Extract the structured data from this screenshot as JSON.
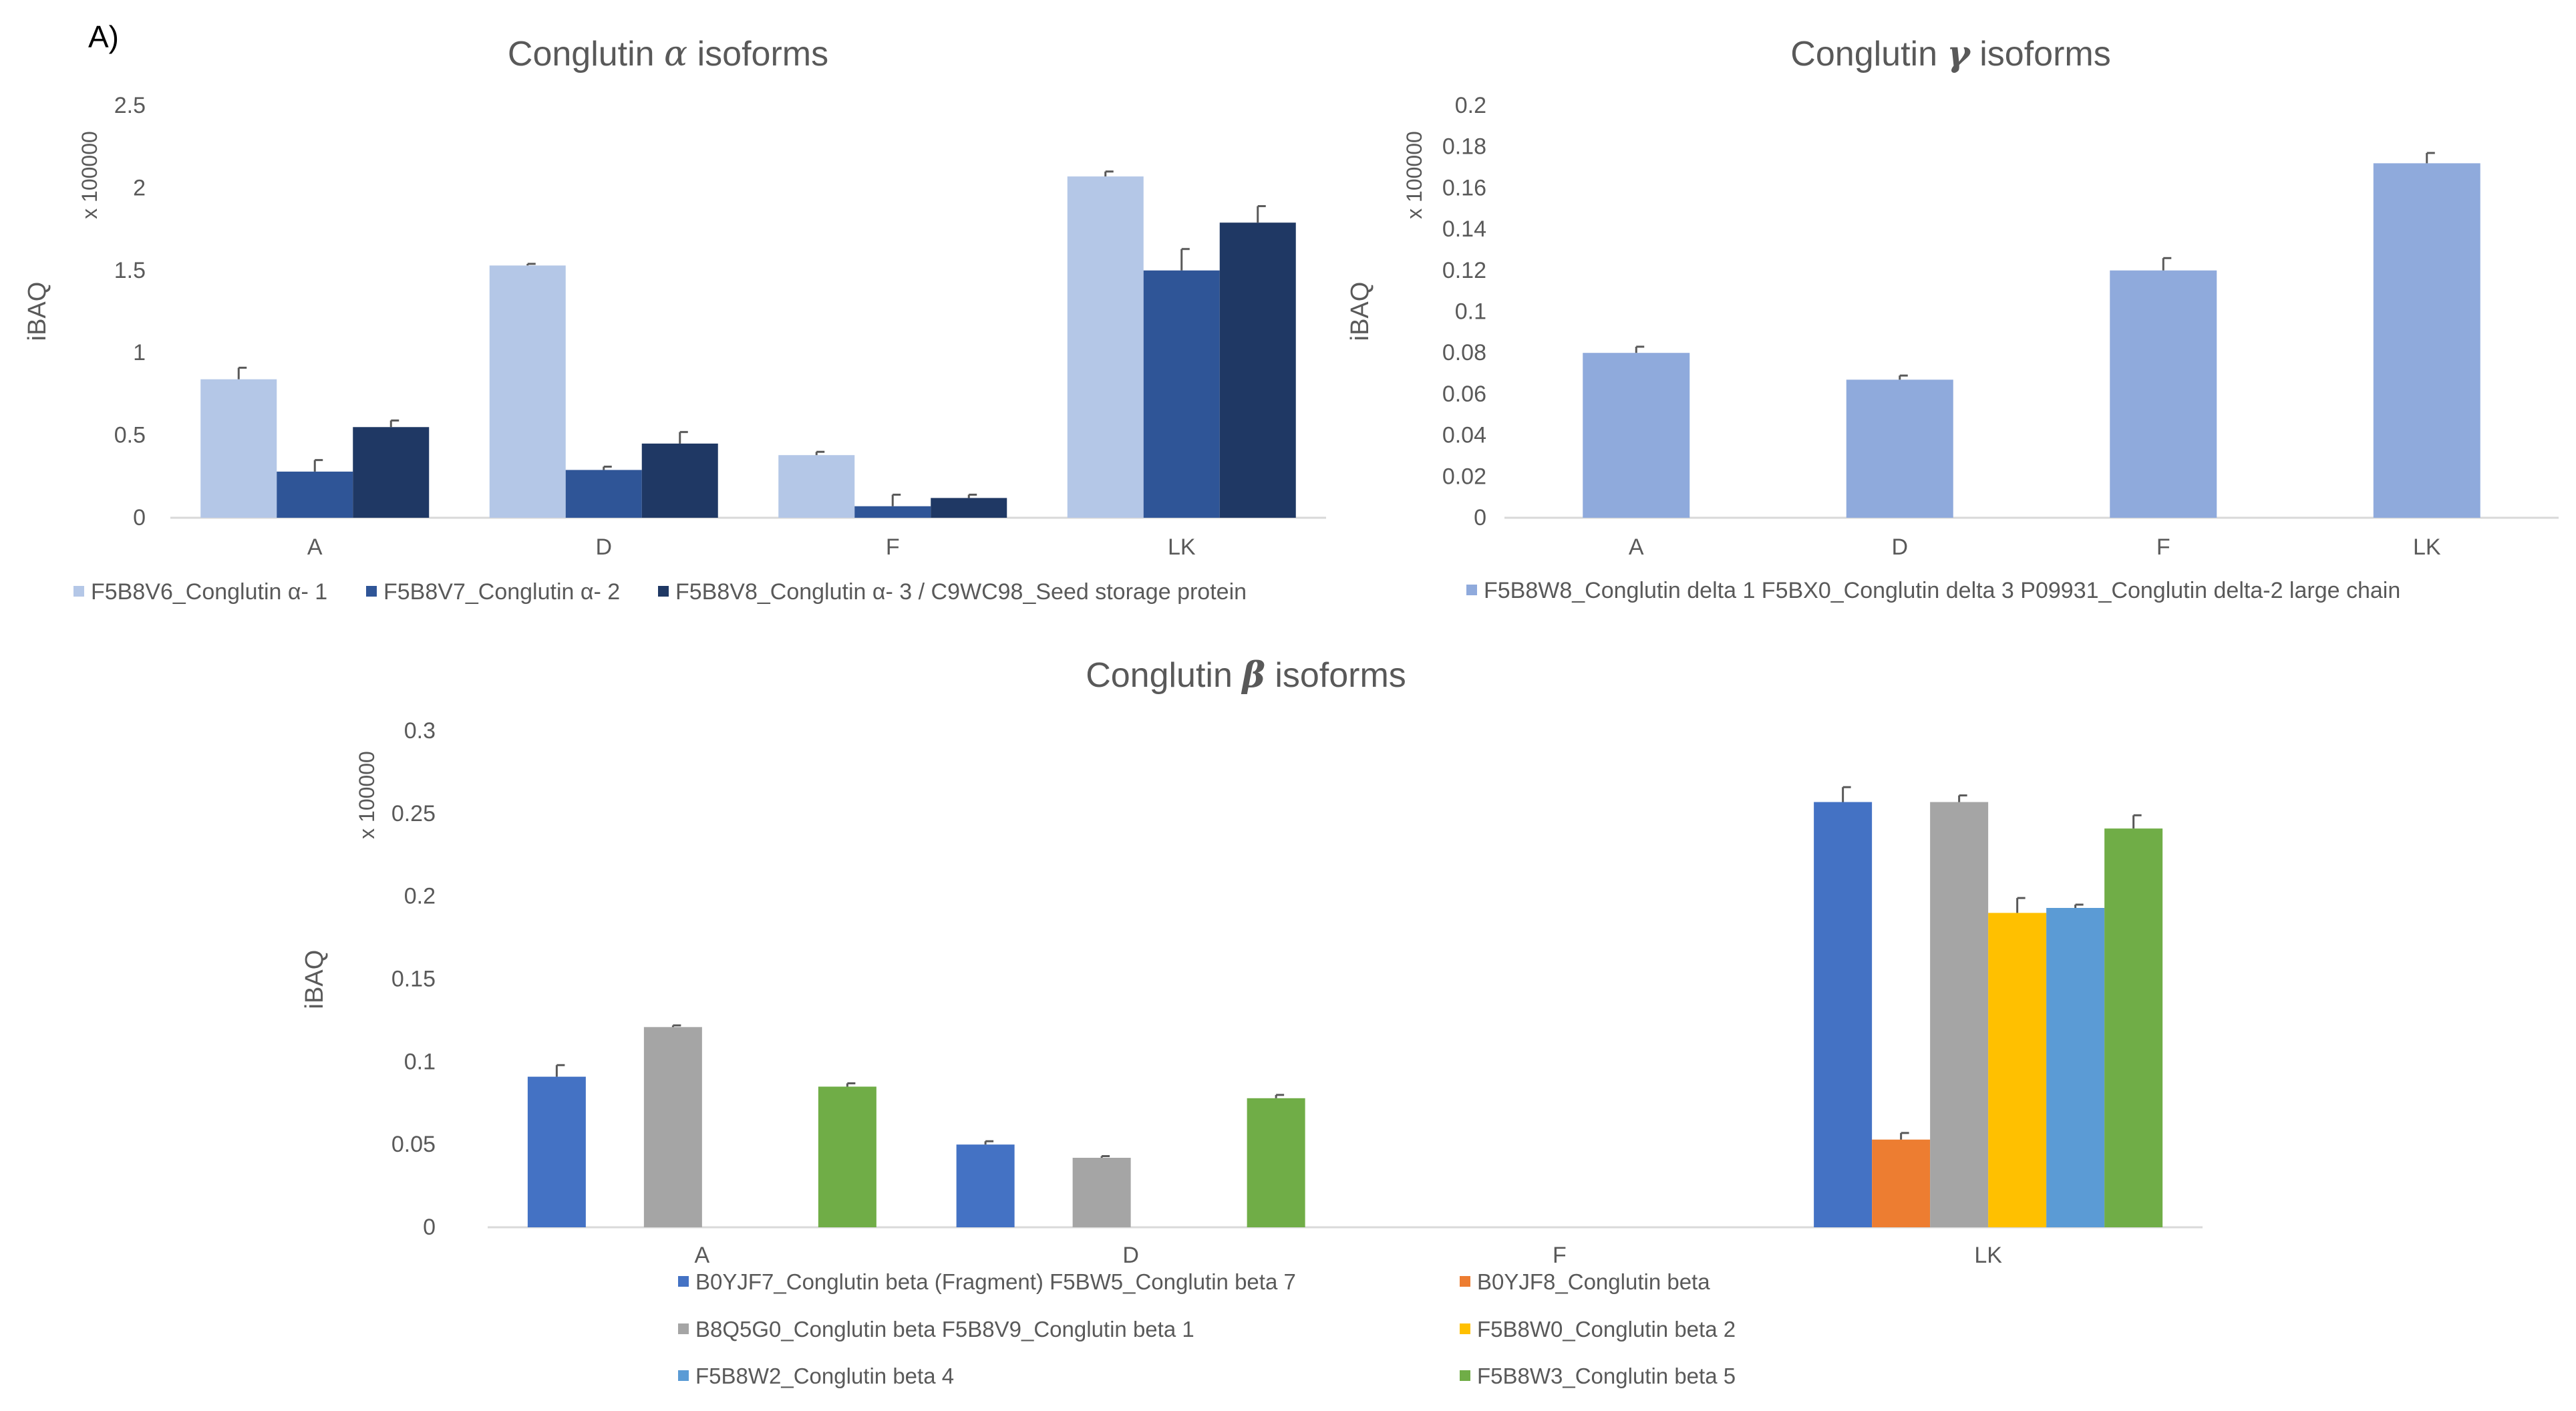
{
  "panel_label": "A)",
  "colors": {
    "axis": "#d9d9d9",
    "text": "#595959",
    "title": "#595959",
    "errorbar": "#595959"
  },
  "chart_data": [
    {
      "id": "alpha",
      "type": "bar",
      "title_prefix": "Conglutin ",
      "title_symbol": "α",
      "title_suffix": " isoforms",
      "ylabel": "iBAQ",
      "yscale_label": "x 100000",
      "ylim": [
        0,
        2.5
      ],
      "yticks": [
        0,
        0.5,
        1,
        1.5,
        2,
        2.5
      ],
      "ytick_labels": [
        "0",
        "0.5",
        "1",
        "1.5",
        "2",
        "2.5"
      ],
      "categories": [
        "A",
        "D",
        "F",
        "LK"
      ],
      "series": [
        {
          "name": "F5B8V6_Conglutin α- 1",
          "color": "#b4c7e7",
          "values": [
            0.84,
            1.53,
            0.38,
            2.07
          ],
          "errors": [
            0.07,
            0.01,
            0.02,
            0.03
          ]
        },
        {
          "name": "F5B8V7_Conglutin α- 2",
          "color": "#2f5597",
          "values": [
            0.28,
            0.29,
            0.07,
            1.5
          ],
          "errors": [
            0.07,
            0.02,
            0.07,
            0.13
          ]
        },
        {
          "name": "F5B8V8_Conglutin α- 3 / C9WC98_Seed storage protein",
          "color": "#1f3864",
          "values": [
            0.55,
            0.45,
            0.12,
            1.79
          ],
          "errors": [
            0.04,
            0.07,
            0.02,
            0.1
          ]
        }
      ]
    },
    {
      "id": "gamma",
      "type": "bar",
      "title_prefix": "Conglutin ",
      "title_symbol": "γ",
      "title_suffix": " isoforms",
      "ylabel": "iBAQ",
      "yscale_label": "x 100000",
      "ylim": [
        0,
        0.2
      ],
      "yticks": [
        0,
        0.02,
        0.04,
        0.06,
        0.08,
        0.1,
        0.12,
        0.14,
        0.16,
        0.18,
        0.2
      ],
      "ytick_labels": [
        "0",
        "0.02",
        "0.04",
        "0.06",
        "0.08",
        "0.1",
        "0.12",
        "0.14",
        "0.16",
        "0.18",
        "0.2"
      ],
      "categories": [
        "A",
        "D",
        "F",
        "LK"
      ],
      "series": [
        {
          "name": "F5B8W8_Conglutin delta 1 F5BX0_Conglutin delta 3 P09931_Conglutin delta-2 large chain",
          "color": "#8faadc",
          "values": [
            0.08,
            0.067,
            0.12,
            0.172
          ],
          "errors": [
            0.003,
            0.002,
            0.006,
            0.005
          ]
        }
      ]
    },
    {
      "id": "beta",
      "type": "bar",
      "title_prefix": "Conglutin ",
      "title_symbol": "β",
      "title_suffix": " isoforms",
      "ylabel": "iBAQ",
      "yscale_label": "x 100000",
      "ylim": [
        0,
        0.3
      ],
      "yticks": [
        0,
        0.05,
        0.1,
        0.15,
        0.2,
        0.25,
        0.3
      ],
      "ytick_labels": [
        "0",
        "0.05",
        "0.1",
        "0.15",
        "0.2",
        "0.25",
        "0.3"
      ],
      "categories": [
        "A",
        "D",
        "F",
        "LK"
      ],
      "series": [
        {
          "name": "B0YJF7_Conglutin beta (Fragment) F5BW5_Conglutin beta 7",
          "color": "#4472c4",
          "values": [
            0.091,
            0.05,
            0,
            0.257
          ],
          "errors": [
            0.007,
            0.002,
            0,
            0.009
          ]
        },
        {
          "name": "B0YJF8_Conglutin beta",
          "color": "#ed7d31",
          "values": [
            0,
            0,
            0,
            0.053
          ],
          "errors": [
            0,
            0,
            0,
            0.004
          ]
        },
        {
          "name": "B8Q5G0_Conglutin beta  F5B8V9_Conglutin beta 1",
          "color": "#a5a5a5",
          "values": [
            0.121,
            0.042,
            0,
            0.257
          ],
          "errors": [
            0.001,
            0.001,
            0,
            0.004
          ]
        },
        {
          "name": "F5B8W0_Conglutin beta 2",
          "color": "#ffc000",
          "values": [
            0,
            0,
            0,
            0.19
          ],
          "errors": [
            0,
            0,
            0,
            0.009
          ]
        },
        {
          "name": "F5B8W2_Conglutin beta 4",
          "color": "#5b9bd5",
          "values": [
            0,
            0,
            0,
            0.193
          ],
          "errors": [
            0,
            0,
            0,
            0.002
          ]
        },
        {
          "name": "F5B8W3_Conglutin beta 5",
          "color": "#70ad47",
          "values": [
            0.085,
            0.078,
            0,
            0.241
          ],
          "errors": [
            0.002,
            0.002,
            0,
            0.008
          ]
        }
      ]
    }
  ]
}
